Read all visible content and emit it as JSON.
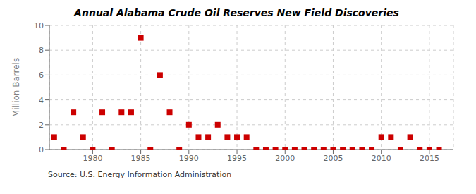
{
  "chart_data": {
    "type": "scatter",
    "title": "Annual Alabama Crude Oil Reserves New Field Discoveries",
    "ylabel": "Million Barrels",
    "annotations": [
      "Source: U.S. Energy Information Administration"
    ],
    "x": [
      1976,
      1977,
      1978,
      1979,
      1980,
      1981,
      1982,
      1983,
      1984,
      1985,
      1986,
      1987,
      1988,
      1989,
      1990,
      1991,
      1992,
      1993,
      1994,
      1995,
      1996,
      1997,
      1998,
      1999,
      2000,
      2001,
      2002,
      2003,
      2004,
      2005,
      2006,
      2007,
      2008,
      2009,
      2010,
      2011,
      2012,
      2013,
      2014,
      2015,
      2016
    ],
    "values": [
      1.0,
      0.0,
      3.0,
      1.0,
      0.0,
      3.0,
      0.0,
      3.0,
      3.0,
      9.0,
      0.0,
      6.0,
      3.0,
      0.0,
      2.0,
      1.0,
      1.0,
      2.0,
      1.0,
      1.0,
      1.0,
      0.0,
      0.0,
      0.0,
      0.0,
      0.0,
      0.0,
      0.0,
      0.0,
      0.0,
      0.0,
      0.0,
      0.0,
      0.0,
      1.0,
      1.0,
      0.0,
      1.0,
      0.0,
      0.0,
      0.0
    ],
    "color": "#cc0000",
    "marker": "square",
    "xlim": [
      1975.5,
      2017.5
    ],
    "ylim": [
      0,
      10
    ],
    "xticks": [
      1980,
      1985,
      1990,
      1995,
      2000,
      2005,
      2010,
      2015
    ],
    "yticks": [
      0,
      2,
      4,
      6,
      8,
      10
    ],
    "grid": true
  }
}
